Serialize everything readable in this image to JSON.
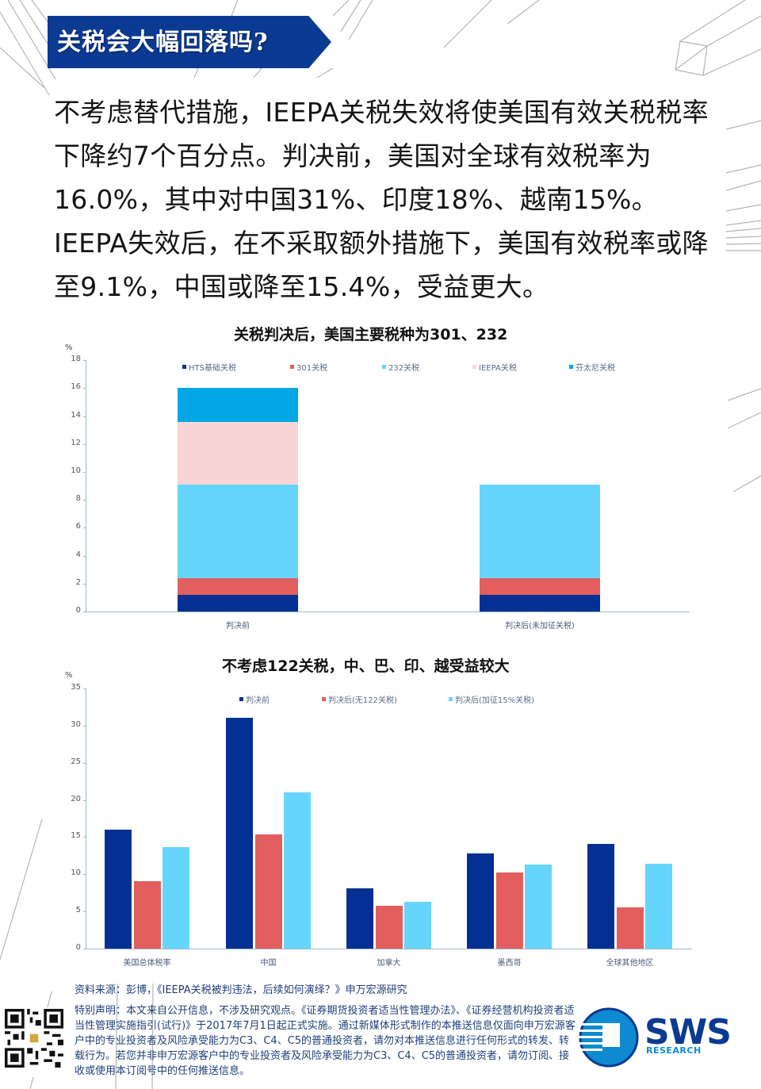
{
  "header": {
    "title": "关税会大幅回落吗?"
  },
  "body": {
    "paragraph": "不考虑替代措施，IEEPA关税失效将使美国有效关税税率下降约7个百分点。判决前，美国对全球有效税率为16.0%，其中对中国31%、印度18%、越南15%。IEEPA失效后，在不采取额外措施下，美国有效税率或降至9.1%，中国或降至15.4%，受益更大。"
  },
  "colors": {
    "navy": "#033092",
    "red": "#e35e5e",
    "sky": "#66d5fc",
    "pink": "#f7d5d6",
    "blue": "#03a7e6",
    "banner": "#0b3a92"
  },
  "chart_data": [
    {
      "type": "bar",
      "stacked": true,
      "title": "关税判决后，美国主要税种为301、232",
      "ylabel": "%",
      "xlabel": "",
      "ylim": [
        0,
        18
      ],
      "yticks": [
        0,
        2,
        4,
        6,
        8,
        10,
        12,
        14,
        16,
        18
      ],
      "grid": false,
      "legend_position": "top",
      "categories": [
        "判决前",
        "判决后(未加征关税)"
      ],
      "series": [
        {
          "name": "HTS基础关税",
          "color": "#033092",
          "values": [
            1.2,
            1.2
          ]
        },
        {
          "name": "301关税",
          "color": "#e35e5e",
          "values": [
            1.2,
            1.2
          ]
        },
        {
          "name": "232关税",
          "color": "#66d5fc",
          "values": [
            6.7,
            6.7
          ]
        },
        {
          "name": "IEEPA关税",
          "color": "#f7d5d6",
          "values": [
            4.5,
            0
          ]
        },
        {
          "name": "芬太尼关税",
          "color": "#03a7e6",
          "values": [
            2.4,
            0
          ]
        }
      ],
      "totals": [
        16.0,
        9.1
      ]
    },
    {
      "type": "bar",
      "stacked": false,
      "title": "不考虑122关税，中、巴、印、越受益较大",
      "ylabel": "%",
      "xlabel": "",
      "ylim": [
        0,
        35
      ],
      "yticks": [
        0,
        5,
        10,
        15,
        20,
        25,
        30,
        35
      ],
      "grid": false,
      "legend_position": "top",
      "categories": [
        "美国总体税率",
        "中国",
        "加拿大",
        "墨西哥",
        "全球其他地区"
      ],
      "series": [
        {
          "name": "判决前",
          "color": "#033092",
          "values": [
            16.0,
            31.0,
            8.1,
            12.8,
            14.1
          ]
        },
        {
          "name": "判决后(无122关税)",
          "color": "#e35e5e",
          "values": [
            9.1,
            15.4,
            5.8,
            10.2,
            5.6
          ]
        },
        {
          "name": "判决后(加征15%关税)",
          "color": "#66d5fc",
          "values": [
            13.7,
            21.0,
            6.3,
            11.3,
            11.4
          ]
        }
      ]
    }
  ],
  "footer": {
    "source": "资料来源：彭博，《IEEPA关税被判违法，后续如何演绎？》申万宏源研究",
    "disclaimer": "特别声明：本文来自公开信息，不涉及研究观点。《证券期货投资者适当性管理办法》、《证券经营机构投资者适当性管理实施指引(试行)》于2017年7月1日起正式实施。通过新媒体形式制作的本推送信息仅面向申万宏源客户中的专业投资者及风险承受能力为C3、C4、C5的普通投资者，请勿对本推送信息进行任何形式的转发、转载行为。若您并非申万宏源客户中的专业投资者及风险承受能力为C3、C4、C5的普通投资者，请勿订阅、接收或使用本订阅号中的任何推送信息。",
    "qr_icon": "qr-code-icon",
    "logo_text": "SWS",
    "logo_sub": "RESEARCH"
  }
}
